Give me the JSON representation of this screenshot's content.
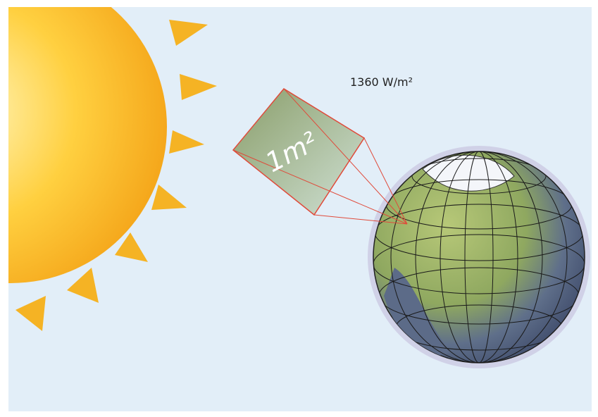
{
  "labels": {
    "irradiance": "1360 W/m²",
    "area": "1m²"
  }
}
